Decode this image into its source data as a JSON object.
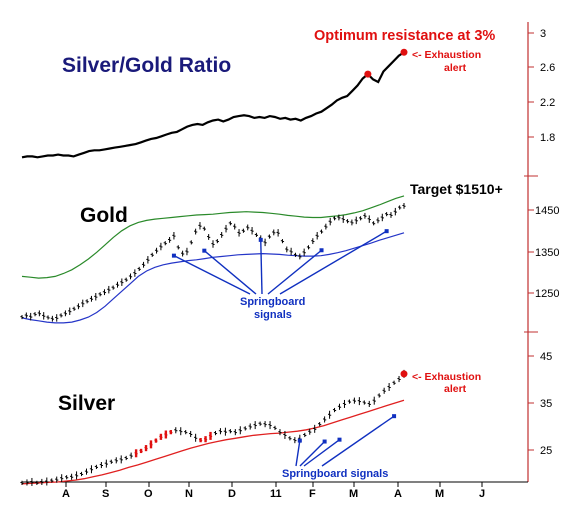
{
  "chart_data": [
    {
      "type": "line",
      "title": "Silver/Gold Ratio",
      "annotation": "Optimum resistance at 3%",
      "alert": [
        "<- Exhaustion",
        "alert"
      ],
      "y_ticks": [
        "3",
        "2.6",
        "2.2",
        "1.8"
      ],
      "series": [
        {
          "values": [
            1.58,
            1.59,
            1.59,
            1.58,
            1.59,
            1.6,
            1.6,
            1.61,
            1.6,
            1.6,
            1.59,
            1.61,
            1.63,
            1.65,
            1.66,
            1.66,
            1.67,
            1.68,
            1.69,
            1.7,
            1.71,
            1.72,
            1.73,
            1.75,
            1.77,
            1.79,
            1.8,
            1.82,
            1.84,
            1.86,
            1.87,
            1.9,
            1.93,
            1.95,
            1.96,
            1.95,
            1.98,
            2.0,
            2.01,
            1.99,
            2.01,
            2.04,
            2.05,
            2.06,
            2.05,
            2.03,
            2.04,
            2.03,
            2.05,
            2.04,
            2.02,
            2.03,
            2.01,
            2.02,
            2.0,
            2.03,
            2.05,
            2.08,
            2.1,
            2.14,
            2.18,
            2.23,
            2.26,
            2.28,
            2.34,
            2.4,
            2.48,
            2.53,
            2.47,
            2.44,
            2.56,
            2.62,
            2.68,
            2.74,
            2.78
          ]
        }
      ],
      "markers": [
        {
          "index": 67,
          "value": 2.53,
          "color": "#e01010"
        },
        {
          "index": 74,
          "value": 2.78,
          "color": "#e01010"
        }
      ]
    },
    {
      "type": "candlestick",
      "title": "Gold",
      "annotation": "Target $1510+",
      "y_ticks": [
        "1450",
        "1350",
        "1250"
      ],
      "callout": [
        "Springboard",
        "signals"
      ],
      "series": [
        {
          "name": "price",
          "values": [
            1192,
            1196,
            1193,
            1199,
            1201,
            1195,
            1191,
            1188,
            1190,
            1196,
            1201,
            1206,
            1212,
            1218,
            1225,
            1230,
            1236,
            1241,
            1247,
            1252,
            1258,
            1263,
            1270,
            1276,
            1282,
            1290,
            1298,
            1308,
            1318,
            1330,
            1342,
            1352,
            1362,
            1370,
            1378,
            1388,
            1360,
            1345,
            1350,
            1372,
            1398,
            1412,
            1405,
            1385,
            1368,
            1375,
            1390,
            1405,
            1418,
            1410,
            1395,
            1400,
            1408,
            1400,
            1390,
            1382,
            1372,
            1386,
            1396,
            1395,
            1375,
            1355,
            1350,
            1342,
            1338,
            1348,
            1360,
            1375,
            1388,
            1398,
            1410,
            1422,
            1430,
            1432,
            1428,
            1423,
            1420,
            1425,
            1430,
            1436,
            1428,
            1418,
            1425,
            1432,
            1440,
            1438,
            1446,
            1456,
            1460
          ]
        },
        {
          "name": "upper band",
          "color": "#2a8a2a",
          "values": [
            1290,
            1288,
            1286,
            1287,
            1290,
            1297,
            1306,
            1318,
            1332,
            1348,
            1366,
            1384,
            1400,
            1412,
            1420,
            1425,
            1428,
            1430,
            1432,
            1434,
            1436,
            1438,
            1439,
            1440,
            1442,
            1444,
            1445,
            1446,
            1445,
            1444,
            1442,
            1440,
            1437,
            1435,
            1433,
            1432,
            1432,
            1434,
            1436,
            1439,
            1443,
            1448,
            1455,
            1462,
            1470,
            1478,
            1484
          ]
        },
        {
          "name": "lower band",
          "color": "#2535c8",
          "values": [
            1190,
            1186,
            1183,
            1180,
            1178,
            1178,
            1180,
            1185,
            1192,
            1203,
            1218,
            1236,
            1254,
            1272,
            1290,
            1303,
            1312,
            1318,
            1322,
            1325,
            1328,
            1330,
            1333,
            1336,
            1338,
            1340,
            1342,
            1343,
            1344,
            1345,
            1344,
            1343,
            1341,
            1340,
            1339,
            1339,
            1340,
            1343,
            1347,
            1352,
            1358,
            1364,
            1370,
            1377,
            1383,
            1389,
            1395
          ]
        }
      ],
      "signals": [
        {
          "index": 35,
          "value": 1340
        },
        {
          "index": 42,
          "value": 1352
        },
        {
          "index": 55,
          "value": 1378
        },
        {
          "index": 69,
          "value": 1353
        },
        {
          "index": 84,
          "value": 1399
        }
      ]
    },
    {
      "type": "candlestick",
      "title": "Silver",
      "alert": [
        "<- Exhaustion",
        "alert"
      ],
      "y_ticks": [
        "45",
        "35",
        "25"
      ],
      "callout": "Springboard signals",
      "month_labels": [
        "A",
        "S",
        "O",
        "N",
        "D",
        "11",
        "F",
        "M",
        "A",
        "M",
        "J"
      ],
      "series": [
        {
          "name": "price",
          "values": [
            18.0,
            18.1,
            18.2,
            18.0,
            18.2,
            18.3,
            18.5,
            18.7,
            19.0,
            19.2,
            19.3,
            19.6,
            19.9,
            20.4,
            20.9,
            21.4,
            21.8,
            22.1,
            22.5,
            22.8,
            23.0,
            23.3,
            23.8,
            24.3,
            24.8,
            25.4,
            26.2,
            27.0,
            27.8,
            28.3,
            28.8,
            29.2,
            29.0,
            28.8,
            28.4,
            27.6,
            27.1,
            27.3,
            28.0,
            28.6,
            29.0,
            28.9,
            29.0,
            28.8,
            29.2,
            29.6,
            30.0,
            30.3,
            30.6,
            30.5,
            30.3,
            29.7,
            28.8,
            28.2,
            27.5,
            27.1,
            27.4,
            28.2,
            28.9,
            29.5,
            30.5,
            31.5,
            32.5,
            33.5,
            34.2,
            34.8,
            35.3,
            35.5,
            35.4,
            35.1,
            34.8,
            35.5,
            36.6,
            37.6,
            38.4,
            39.3,
            40.1,
            41.2
          ]
        },
        {
          "name": "trend",
          "color": "#e02020",
          "values": [
            17.8,
            17.9,
            18.0,
            18.1,
            18.2,
            18.4,
            18.6,
            18.9,
            19.3,
            19.7,
            20.2,
            20.7,
            21.3,
            21.8,
            22.4,
            23.0,
            23.6,
            24.2,
            24.8,
            25.4,
            25.9,
            26.4,
            26.8,
            27.2,
            27.5,
            27.8,
            28.1,
            28.3,
            28.5,
            28.6,
            28.8,
            29.0,
            29.3,
            29.7,
            30.2,
            30.8,
            31.4,
            32.0,
            32.6,
            33.2,
            33.8,
            34.4,
            35.0,
            35.6
          ]
        }
      ],
      "highlight_ranges": [
        [
          23,
          30
        ],
        [
          36,
          38
        ]
      ],
      "signals": [
        {
          "index": 56,
          "value": 27.0
        },
        {
          "index": 61,
          "value": 26.8
        },
        {
          "index": 64,
          "value": 27.2
        },
        {
          "index": 75,
          "value": 32.2
        }
      ],
      "markers": [
        {
          "index": 77,
          "value": 41.2,
          "color": "#e01010"
        }
      ]
    }
  ]
}
